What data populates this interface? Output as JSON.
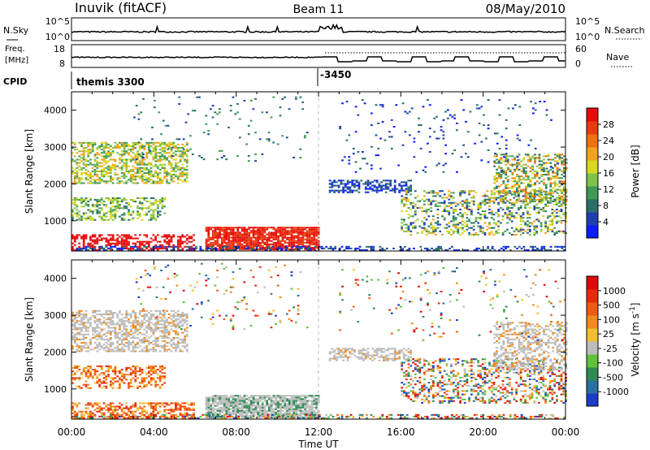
{
  "header": {
    "station": "Inuvik (fitACF)",
    "beam": "Beam 11",
    "date": "08/May/2010"
  },
  "top_panels": {
    "nsky_label": "N.Sky",
    "nsky_ticks": [
      "10^5",
      "10^0"
    ],
    "nsearch_label": "N.Search",
    "nsearch_ticks": [
      "10^5",
      "10^0"
    ],
    "freq_label_line1": "Freq.",
    "freq_label_line2": "[MHz]",
    "freq_ticks": [
      "18",
      "8"
    ],
    "nave_label": "Nave",
    "nave_ticks": [
      "60",
      "0"
    ],
    "cpid_label": "CPID",
    "cpid_entries": [
      "themis 3300",
      "-3450"
    ]
  },
  "chart_data": [
    {
      "type": "heatmap",
      "title": "",
      "xlabel": "",
      "ylabel": "Slant Range [km]",
      "x_ticks": [
        "00:00",
        "04:00",
        "08:00",
        "12:00",
        "16:00",
        "20:00",
        "00:00"
      ],
      "y_ticks": [
        "1000",
        "2000",
        "3000",
        "4000"
      ],
      "xlim_hours": [
        0,
        24
      ],
      "ylim_km": [
        180,
        4500
      ],
      "colorbar": {
        "label": "Power [dB]",
        "ticks": [
          "4",
          "8",
          "12",
          "16",
          "20",
          "24",
          "28"
        ],
        "colors": [
          "#0a1eff",
          "#1f3fb0",
          "#2a6f6a",
          "#3f9a55",
          "#7ec24a",
          "#d8d81e",
          "#f2a21a",
          "#f0700f",
          "#e83a0e",
          "#e80a0a"
        ]
      }
    },
    {
      "type": "heatmap",
      "title": "",
      "xlabel": "Time UT",
      "ylabel": "Slant Range [km]",
      "x_ticks": [
        "00:00",
        "04:00",
        "08:00",
        "12:00",
        "16:00",
        "20:00",
        "00:00"
      ],
      "y_ticks": [
        "1000",
        "2000",
        "3000",
        "4000"
      ],
      "xlim_hours": [
        0,
        24
      ],
      "ylim_km": [
        180,
        4500
      ],
      "colorbar": {
        "label": "Velocity [m s^-1]",
        "ticks": [
          "1000",
          "500",
          "100",
          "25",
          "-25",
          "-100",
          "-500",
          "-1000"
        ],
        "colors": [
          "#1a3cc8",
          "#2a70a0",
          "#2f8a55",
          "#5fc23a",
          "#bcbcbc",
          "#f0c030",
          "#f08a1a",
          "#f05a10",
          "#e82a0a",
          "#e00808"
        ]
      }
    }
  ]
}
